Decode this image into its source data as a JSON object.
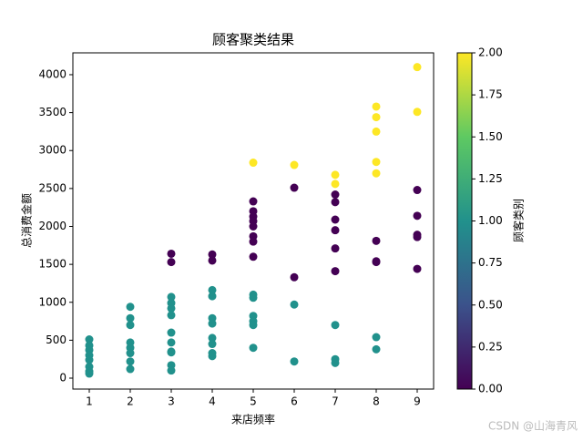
{
  "chart_data": {
    "type": "scatter",
    "title": "顾客聚类结果",
    "x_label": "来店频率",
    "y_label": "总消费金额",
    "x": [
      1,
      1,
      1,
      1,
      1,
      1,
      1,
      1,
      2,
      2,
      2,
      2,
      2,
      2,
      2,
      2,
      3,
      3,
      3,
      3,
      3,
      3,
      3,
      3,
      3,
      3,
      3,
      3,
      4,
      4,
      4,
      4,
      4,
      4,
      4,
      4,
      4,
      4,
      5,
      5,
      5,
      5,
      5,
      5,
      5,
      5,
      5,
      5,
      5,
      5,
      5,
      5,
      5,
      6,
      6,
      6,
      6,
      6,
      7,
      7,
      7,
      7,
      7,
      7,
      7,
      7,
      7,
      7,
      7,
      8,
      8,
      8,
      8,
      8,
      8,
      8,
      8,
      8,
      8,
      9,
      9,
      9,
      9,
      9,
      9,
      9
    ],
    "values": [
      510,
      430,
      370,
      300,
      240,
      150,
      90,
      60,
      940,
      790,
      700,
      470,
      400,
      330,
      220,
      120,
      1640,
      1530,
      1070,
      990,
      920,
      830,
      600,
      470,
      350,
      340,
      170,
      100,
      1630,
      1550,
      1160,
      1080,
      790,
      720,
      530,
      450,
      330,
      290,
      2840,
      2330,
      2200,
      2130,
      2070,
      2000,
      1870,
      1800,
      1600,
      1100,
      1060,
      820,
      750,
      700,
      400,
      2810,
      2510,
      1330,
      970,
      220,
      2680,
      2560,
      2420,
      2320,
      2090,
      1950,
      1710,
      1410,
      700,
      250,
      200,
      3580,
      3440,
      3250,
      2850,
      2700,
      1810,
      1540,
      1530,
      540,
      380,
      4100,
      3510,
      2480,
      2140,
      1890,
      1860,
      1440
    ],
    "classes": [
      1,
      1,
      1,
      1,
      1,
      1,
      1,
      1,
      1,
      1,
      1,
      1,
      1,
      1,
      1,
      1,
      0,
      0,
      1,
      1,
      1,
      1,
      1,
      1,
      1,
      1,
      1,
      1,
      0,
      0,
      1,
      1,
      1,
      1,
      1,
      1,
      1,
      1,
      2,
      0,
      0,
      0,
      0,
      0,
      0,
      0,
      0,
      1,
      1,
      1,
      1,
      1,
      1,
      2,
      0,
      0,
      1,
      1,
      2,
      2,
      0,
      0,
      0,
      0,
      0,
      0,
      1,
      1,
      1,
      2,
      2,
      2,
      2,
      2,
      0,
      0,
      0,
      1,
      1,
      2,
      2,
      0,
      0,
      0,
      0,
      0
    ],
    "colormap": [
      "#440154",
      "#3b528b",
      "#21918c",
      "#5ec962",
      "#fde725"
    ],
    "xlim": [
      0.6,
      9.4
    ],
    "ylim": [
      -144,
      4288
    ],
    "xticks": [
      1,
      2,
      3,
      4,
      5,
      6,
      7,
      8,
      9
    ],
    "yticks": [
      0,
      500,
      1000,
      1500,
      2000,
      2500,
      3000,
      3500,
      4000
    ],
    "colorbar_label": "顾客类别",
    "clim": [
      0,
      2
    ],
    "cticks": [
      {
        "value": 0,
        "label": "0.00"
      },
      {
        "value": 0.25,
        "label": "0.25"
      },
      {
        "value": 0.5,
        "label": "0.50"
      },
      {
        "value": 0.75,
        "label": "0.75"
      },
      {
        "value": 1,
        "label": "1.00"
      },
      {
        "value": 1.25,
        "label": "1.25"
      },
      {
        "value": 1.5,
        "label": "1.50"
      },
      {
        "value": 1.75,
        "label": "1.75"
      },
      {
        "value": 2,
        "label": "2.00"
      }
    ]
  },
  "watermark": "CSDN @山海青风"
}
